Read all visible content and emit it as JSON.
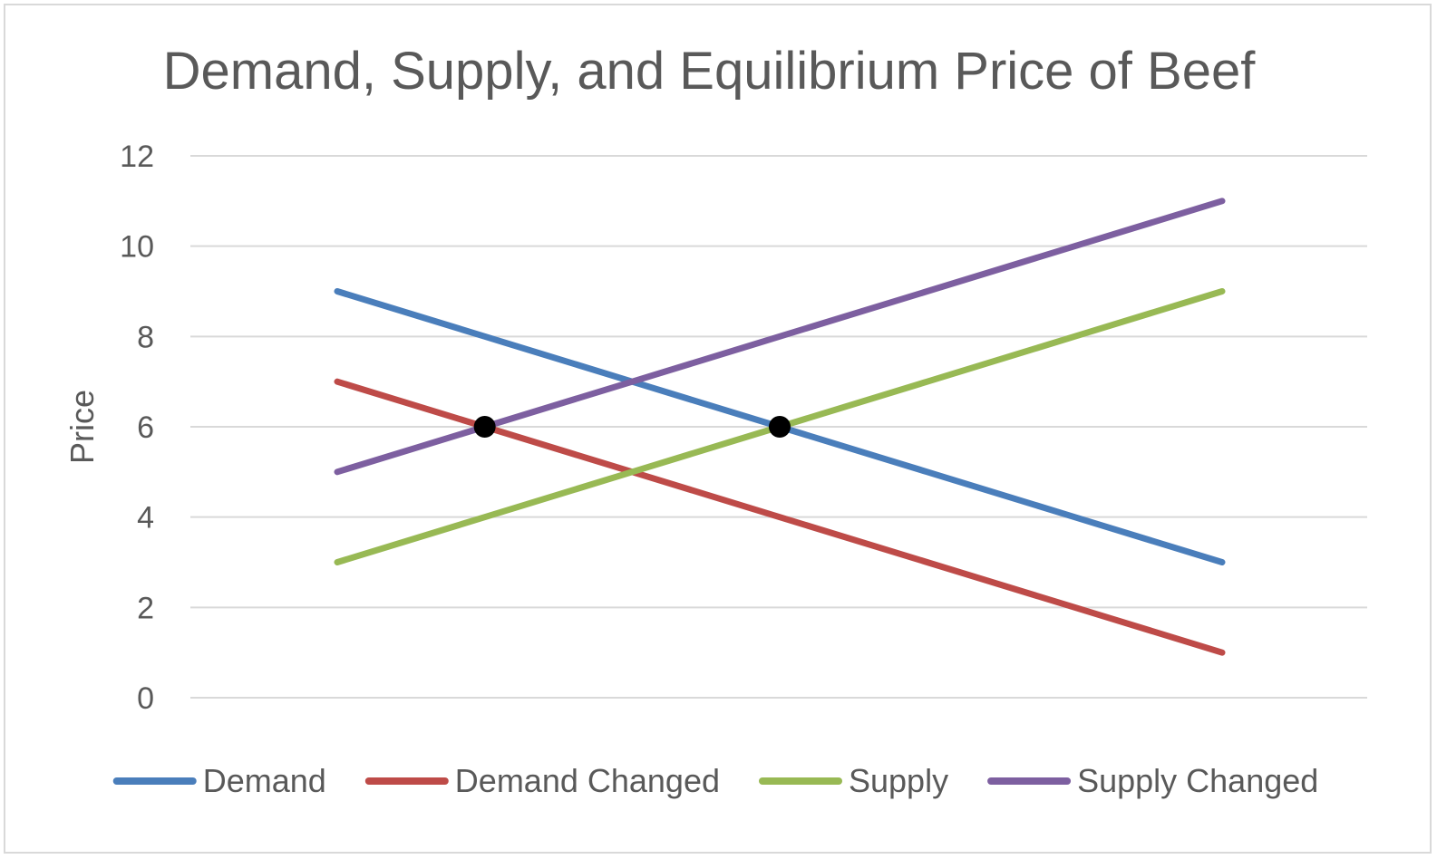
{
  "chart_data": {
    "type": "line",
    "title": "Demand, Supply, and Equilibrium Price of Beef",
    "xlabel": "",
    "ylabel": "Price",
    "ylim": [
      0,
      12
    ],
    "yticks": [
      "0",
      "2",
      "4",
      "6",
      "8",
      "10",
      "12"
    ],
    "grid": true,
    "legend_position": "bottom",
    "x": [
      1,
      2,
      3,
      4,
      5,
      6,
      7
    ],
    "series": [
      {
        "name": "Demand",
        "color": "#4a7ebb",
        "values": [
          9,
          8,
          7,
          6,
          5,
          4,
          3
        ]
      },
      {
        "name": "Demand Changed",
        "color": "#be4b48",
        "values": [
          7,
          6,
          5,
          4,
          3,
          2,
          1
        ]
      },
      {
        "name": "Supply",
        "color": "#98b954",
        "values": [
          3,
          4,
          5,
          6,
          7,
          8,
          9
        ]
      },
      {
        "name": "Supply Changed",
        "color": "#7d5fa0",
        "values": [
          5,
          6,
          7,
          8,
          9,
          10,
          11
        ]
      }
    ],
    "equilibrium_points": [
      {
        "x": 2,
        "y": 6
      },
      {
        "x": 4,
        "y": 6
      }
    ]
  }
}
